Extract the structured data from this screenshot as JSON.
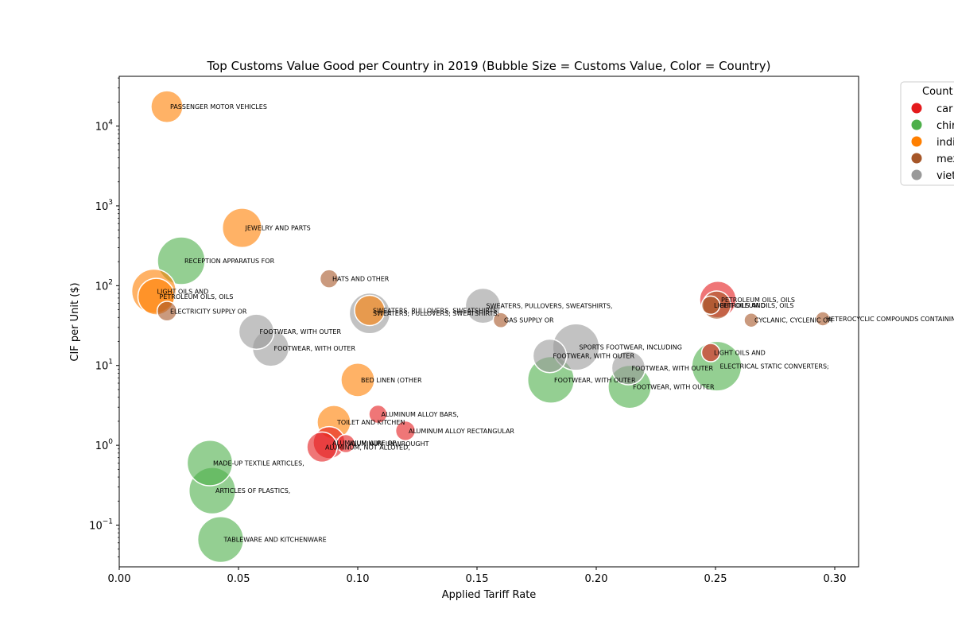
{
  "chart_data": {
    "type": "scatter",
    "title": "Top Customs Value Good per Country in 2019 (Bubble Size = Customs Value, Color = Country)",
    "xlabel": "Applied Tariff Rate",
    "ylabel": "CIF per Unit ($)",
    "xlim": [
      0.0,
      0.31
    ],
    "ylim": [
      0.03,
      42000
    ],
    "yscale": "log",
    "grid": false,
    "x_ticks": [
      0.0,
      0.05,
      0.1,
      0.15,
      0.2,
      0.25,
      0.3
    ],
    "x_tick_labels": [
      "0.00",
      "0.05",
      "0.10",
      "0.15",
      "0.20",
      "0.25",
      "0.30"
    ],
    "y_ticks": [
      0.1,
      1,
      10,
      100,
      1000,
      10000
    ],
    "y_tick_labels": [
      [
        "10",
        "−1"
      ],
      [
        "10",
        "0"
      ],
      [
        "10",
        "1"
      ],
      [
        "10",
        "2"
      ],
      [
        "10",
        "3"
      ],
      [
        "10",
        "4"
      ]
    ],
    "legend": {
      "title": "Count",
      "placement": "upper-right-outside",
      "entries": [
        {
          "label": "car",
          "color": "#e41a1c"
        },
        {
          "label": "chir",
          "color": "#4daf4a"
        },
        {
          "label": "indi",
          "color": "#ff7f00"
        },
        {
          "label": "mex",
          "color": "#a65628"
        },
        {
          "label": "viet",
          "color": "#999999"
        }
      ]
    },
    "series": [
      {
        "key": "car",
        "color": "#e41a1c",
        "points": [
          {
            "x": 0.251,
            "y": 67,
            "size": 0.55,
            "label": "PETROLEUM OILS, OILS"
          },
          {
            "x": 0.248,
            "y": 14.5,
            "size": 0.1,
            "label": "LIGHT OILS AND"
          },
          {
            "x": 0.1085,
            "y": 2.45,
            "size": 0.1,
            "label": "ALUMINUM ALLOY BARS,"
          },
          {
            "x": 0.12,
            "y": 1.52,
            "size": 0.12,
            "label": "ALUMINUM ALLOY RECTANGULAR"
          },
          {
            "x": 0.088,
            "y": 1.08,
            "size": 0.4,
            "label": "ALUMINUM WIRE OF"
          },
          {
            "x": 0.095,
            "y": 1.05,
            "size": 0.1,
            "label": "ALUMINUM UNWROUGHT"
          },
          {
            "x": 0.085,
            "y": 0.95,
            "size": 0.35,
            "label": "ALUMINUM, NOT ALLOYED,"
          }
        ]
      },
      {
        "key": "chir",
        "color": "#4daf4a",
        "points": [
          {
            "x": 0.026,
            "y": 205,
            "size": 1.0,
            "label": "RECEPTION APPARATUS FOR"
          },
          {
            "x": 0.038,
            "y": 0.6,
            "size": 0.9,
            "label": "MADE-UP TEXTILE ARTICLES,"
          },
          {
            "x": 0.039,
            "y": 0.27,
            "size": 0.95,
            "label": "ARTICLES OF PLASTICS,"
          },
          {
            "x": 0.0425,
            "y": 0.066,
            "size": 0.92,
            "label": "TABLEWARE AND KITCHENWARE"
          },
          {
            "x": 0.181,
            "y": 6.6,
            "size": 0.95,
            "label": "FOOTWEAR, WITH OUTER"
          },
          {
            "x": 0.214,
            "y": 5.4,
            "size": 0.8,
            "label": "FOOTWEAR, WITH OUTER"
          },
          {
            "x": 0.2505,
            "y": 9.8,
            "size": 1.1,
            "label": "ELECTRICAL STATIC CONVERTERS;"
          }
        ]
      },
      {
        "key": "indi",
        "color": "#ff7f00",
        "points": [
          {
            "x": 0.02,
            "y": 17500,
            "size": 0.4,
            "label": "PASSENGER MOTOR VEHICLES"
          },
          {
            "x": 0.0515,
            "y": 530,
            "size": 0.65,
            "label": "JEWELRY AND PARTS"
          },
          {
            "x": 0.0145,
            "y": 85,
            "size": 0.85,
            "label": "LIGHT OILS AND"
          },
          {
            "x": 0.0155,
            "y": 73,
            "size": 0.55,
            "label": "PETROLEUM OILS, OILS"
          },
          {
            "x": 0.105,
            "y": 49,
            "size": 0.35,
            "label": "SWEATERS, PULLOVERS, SWEATSHIRTS,"
          },
          {
            "x": 0.1,
            "y": 6.6,
            "size": 0.45,
            "label": "BED LINEN (OTHER"
          },
          {
            "x": 0.09,
            "y": 1.95,
            "size": 0.45,
            "label": "TOILET AND KITCHEN"
          }
        ]
      },
      {
        "key": "mex",
        "color": "#a65628",
        "points": [
          {
            "x": 0.02,
            "y": 48,
            "size": 0.12,
            "label": "ELECTRICITY SUPPLY OR"
          },
          {
            "x": 0.088,
            "y": 122,
            "size": 0.1,
            "label": "HATS AND OTHER"
          },
          {
            "x": 0.16,
            "y": 37,
            "size": 0.06,
            "label": "GAS SUPPLY OR"
          },
          {
            "x": 0.248,
            "y": 57,
            "size": 0.1,
            "label": "LIGHT OILS AND"
          },
          {
            "x": 0.2505,
            "y": 57,
            "size": 0.3,
            "label": "PETROLEUM OILS, OILS"
          },
          {
            "x": 0.265,
            "y": 37,
            "size": 0.05,
            "label": "CYCLANIC, CYCLENIC OR"
          },
          {
            "x": 0.295,
            "y": 38.5,
            "size": 0.05,
            "label": "HETEROCYCLIC COMPOUNDS CONTAINING"
          }
        ]
      },
      {
        "key": "viet",
        "color": "#999999",
        "points": [
          {
            "x": 0.0575,
            "y": 26.5,
            "size": 0.5,
            "label": "FOOTWEAR, WITH OUTER"
          },
          {
            "x": 0.0635,
            "y": 16.5,
            "size": 0.55,
            "label": "FOOTWEAR, WITH OUTER"
          },
          {
            "x": 0.105,
            "y": 45,
            "size": 0.7,
            "label": "SWEATERS, PULLOVERS, SWEATSHIRTS,"
          },
          {
            "x": 0.1525,
            "y": 56,
            "size": 0.5,
            "label": "SWEATERS, PULLOVERS, SWEATSHIRTS,"
          },
          {
            "x": 0.1805,
            "y": 13.2,
            "size": 0.45,
            "label": "FOOTWEAR, WITH OUTER"
          },
          {
            "x": 0.1915,
            "y": 17,
            "size": 0.95,
            "label": "SPORTS FOOTWEAR, INCLUDING"
          },
          {
            "x": 0.2135,
            "y": 9.3,
            "size": 0.45,
            "label": "FOOTWEAR, WITH OUTER"
          }
        ]
      }
    ]
  }
}
